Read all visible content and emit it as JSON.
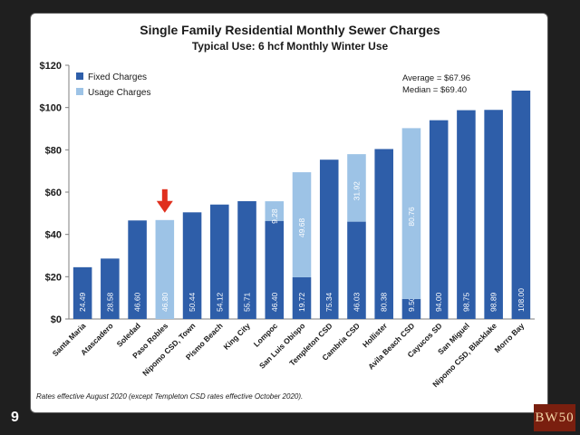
{
  "slide_number": "9",
  "logo_text": "BW50",
  "colors": {
    "fixed": "#2e5ea9",
    "usage": "#9dc3e6",
    "arrow": "#e0301e",
    "axis": "#7f7f7f",
    "gridline": "#d9d9d9"
  },
  "chart_data": {
    "type": "bar",
    "stacked": true,
    "title": "Single Family Residential Monthly Sewer Charges",
    "subtitle": "Typical Use: 6 hcf Monthly Winter Use",
    "ylim": [
      0,
      120
    ],
    "yticks": [
      0,
      20,
      40,
      60,
      80,
      100,
      120
    ],
    "ytick_labels": [
      "$0",
      "$20",
      "$40",
      "$60",
      "$80",
      "$100",
      "$120"
    ],
    "grid": false,
    "legend_position": "top-left",
    "categories": [
      "Santa Maria",
      "Atascadero",
      "Soledad",
      "Paso Robles",
      "Nipomo CSD, Town",
      "Pismo Beach",
      "King City",
      "Lompoc",
      "San Luis Obispo",
      "Templeton CSD",
      "Cambria CSD",
      "Hollister",
      "Avila Beach CSD",
      "Cayucos SD",
      "San Miguel",
      "Nipomo CSD, Blacklake",
      "Morro Bay"
    ],
    "series": [
      {
        "name": "Fixed Charges",
        "values": [
          24.49,
          28.58,
          46.6,
          0,
          50.44,
          54.12,
          55.71,
          46.4,
          19.72,
          75.34,
          46.03,
          80.38,
          9.5,
          94.0,
          98.75,
          98.89,
          108.0
        ],
        "labels": [
          "24.49",
          "28.58",
          "46.60",
          "",
          "50.44",
          "54.12",
          "55.71",
          "46.40",
          "19.72",
          "75.34",
          "46.03",
          "80.38",
          "9.50",
          "94.00",
          "98.75",
          "98.89",
          "108.00"
        ]
      },
      {
        "name": "Usage Charges",
        "values": [
          0,
          0,
          0,
          46.8,
          0,
          0,
          0,
          9.28,
          49.68,
          0,
          31.92,
          0,
          80.76,
          0,
          0,
          0,
          0
        ],
        "labels": [
          "",
          "",
          "",
          "46.80",
          "",
          "",
          "",
          "9.28",
          "49.68",
          "",
          "31.92",
          "",
          "80.76",
          "",
          "",
          "",
          ""
        ]
      }
    ],
    "annotations": {
      "average": "Average = $67.96",
      "median": "Median = $69.40",
      "highlight_category": "Paso Robles"
    },
    "footnote": "Rates effective August 2020 (except Templeton CSD rates effective October 2020)."
  }
}
